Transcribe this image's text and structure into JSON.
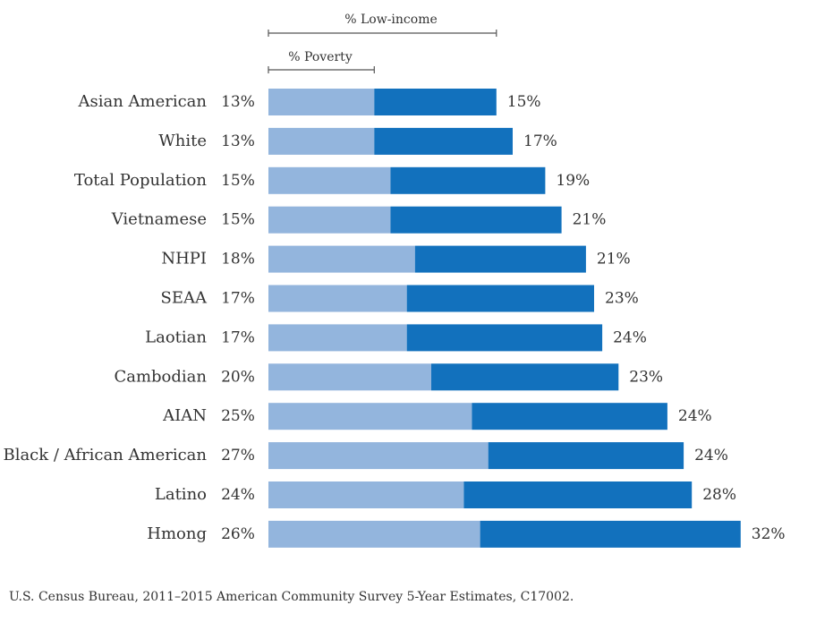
{
  "chart_data": {
    "type": "bar",
    "orientation": "horizontal",
    "stacked": true,
    "categories": [
      "Asian American",
      "White",
      "Total Population",
      "Vietnamese",
      "NHPI",
      "SEAA",
      "Laotian",
      "Cambodian",
      "AIAN",
      "Black / African American",
      "Latino",
      "Hmong"
    ],
    "series": [
      {
        "name": "% Poverty",
        "values": [
          13,
          13,
          15,
          15,
          18,
          17,
          17,
          20,
          25,
          27,
          24,
          26
        ],
        "color": "#93b5dd"
      },
      {
        "name": "% Low-income",
        "values": [
          15,
          17,
          19,
          21,
          21,
          23,
          24,
          23,
          24,
          24,
          28,
          32
        ],
        "color": "#1271bd"
      }
    ],
    "poverty_labels": [
      "13%",
      "13%",
      "15%",
      "15%",
      "18%",
      "17%",
      "17%",
      "20%",
      "25%",
      "27%",
      "24%",
      "26%"
    ],
    "lowincome_labels": [
      "15%",
      "17%",
      "19%",
      "21%",
      "21%",
      "23%",
      "24%",
      "23%",
      "24%",
      "24%",
      "28%",
      "32%"
    ],
    "legend": {
      "lowincome_label": "% Low-income",
      "poverty_label": "% Poverty"
    },
    "xlim": [
      0,
      60
    ],
    "grid": false
  },
  "source": "U.S. Census Bureau, 2011–2015 American Community Survey 5-Year Estimates, C17002."
}
